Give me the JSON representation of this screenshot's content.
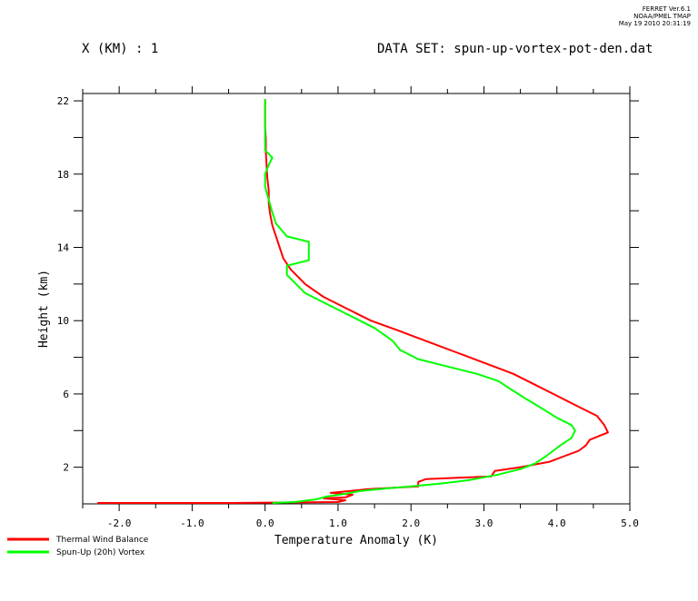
{
  "stamp": {
    "line1": "FERRET  Ver.6.1",
    "line2": "NOAA/PMEL TMAP",
    "line3": "May 19 2010 20:31:19"
  },
  "header": {
    "left": "X (KM) : 1",
    "right": "DATA SET: spun-up-vortex-pot-den.dat"
  },
  "chart_data": {
    "type": "line",
    "xlabel": "Temperature Anomaly (K)",
    "ylabel": "Height (km)",
    "xlim": [
      -2.5,
      5.0
    ],
    "ylim": [
      0,
      22.4
    ],
    "xticks": [
      -2.0,
      -1.0,
      0.0,
      1.0,
      2.0,
      3.0,
      4.0,
      5.0
    ],
    "xtick_labels": [
      "-2.0",
      "-1.0",
      "0.0",
      "1.0",
      "2.0",
      "3.0",
      "4.0",
      "5.0"
    ],
    "yticks": [
      2,
      6,
      10,
      14,
      18,
      22
    ],
    "ytick_labels": [
      "2",
      "6",
      "10",
      "14",
      "18",
      "22"
    ],
    "grid": false,
    "legend": "bottom-left",
    "series": [
      {
        "name": "Thermal Wind Balance",
        "color": "#ff0000",
        "points": [
          [
            -2.3,
            0.05
          ],
          [
            -0.5,
            0.05
          ],
          [
            1.0,
            0.1
          ],
          [
            1.1,
            0.2
          ],
          [
            0.8,
            0.3
          ],
          [
            1.1,
            0.35
          ],
          [
            1.2,
            0.5
          ],
          [
            0.9,
            0.6
          ],
          [
            1.4,
            0.8
          ],
          [
            2.1,
            0.95
          ],
          [
            2.1,
            1.2
          ],
          [
            2.2,
            1.35
          ],
          [
            3.1,
            1.5
          ],
          [
            3.15,
            1.8
          ],
          [
            3.5,
            2.0
          ],
          [
            3.9,
            2.3
          ],
          [
            4.1,
            2.6
          ],
          [
            4.3,
            2.9
          ],
          [
            4.4,
            3.2
          ],
          [
            4.45,
            3.5
          ],
          [
            4.7,
            3.9
          ],
          [
            4.65,
            4.3
          ],
          [
            4.55,
            4.8
          ],
          [
            4.3,
            5.3
          ],
          [
            4.0,
            5.9
          ],
          [
            3.7,
            6.5
          ],
          [
            3.4,
            7.1
          ],
          [
            3.0,
            7.7
          ],
          [
            2.6,
            8.3
          ],
          [
            2.2,
            8.9
          ],
          [
            1.8,
            9.5
          ],
          [
            1.45,
            10.0
          ],
          [
            1.1,
            10.7
          ],
          [
            0.8,
            11.3
          ],
          [
            0.55,
            12.0
          ],
          [
            0.35,
            12.8
          ],
          [
            0.25,
            13.4
          ],
          [
            0.2,
            14.0
          ],
          [
            0.15,
            14.6
          ],
          [
            0.1,
            15.2
          ],
          [
            0.07,
            15.8
          ],
          [
            0.05,
            16.4
          ],
          [
            0.05,
            17.1
          ],
          [
            0.03,
            17.8
          ],
          [
            0.02,
            18.5
          ],
          [
            0.01,
            19.2
          ],
          [
            0.01,
            19.9
          ],
          [
            0.0,
            20.6
          ],
          [
            0.0,
            21.3
          ],
          [
            0.0,
            22.1
          ]
        ]
      },
      {
        "name": "Spun-Up (20h) Vortex",
        "color": "#00ff00",
        "points": [
          [
            0.1,
            0.05
          ],
          [
            0.4,
            0.1
          ],
          [
            0.7,
            0.25
          ],
          [
            0.85,
            0.4
          ],
          [
            1.1,
            0.55
          ],
          [
            1.3,
            0.7
          ],
          [
            1.7,
            0.85
          ],
          [
            2.0,
            0.95
          ],
          [
            2.4,
            1.1
          ],
          [
            2.8,
            1.3
          ],
          [
            3.2,
            1.6
          ],
          [
            3.5,
            1.9
          ],
          [
            3.7,
            2.2
          ],
          [
            3.85,
            2.6
          ],
          [
            3.95,
            2.9
          ],
          [
            4.05,
            3.2
          ],
          [
            4.2,
            3.6
          ],
          [
            4.25,
            4.0
          ],
          [
            4.2,
            4.3
          ],
          [
            4.0,
            4.7
          ],
          [
            3.8,
            5.2
          ],
          [
            3.55,
            5.8
          ],
          [
            3.35,
            6.3
          ],
          [
            3.2,
            6.7
          ],
          [
            2.9,
            7.1
          ],
          [
            2.5,
            7.5
          ],
          [
            2.1,
            7.9
          ],
          [
            1.85,
            8.4
          ],
          [
            1.75,
            8.9
          ],
          [
            1.5,
            9.6
          ],
          [
            1.35,
            9.9
          ],
          [
            1.1,
            10.4
          ],
          [
            0.8,
            11.0
          ],
          [
            0.55,
            11.5
          ],
          [
            0.45,
            11.9
          ],
          [
            0.3,
            12.5
          ],
          [
            0.3,
            13.0
          ],
          [
            0.6,
            13.3
          ],
          [
            0.6,
            14.3
          ],
          [
            0.3,
            14.6
          ],
          [
            0.15,
            15.3
          ],
          [
            0.1,
            15.9
          ],
          [
            0.05,
            16.6
          ],
          [
            0.0,
            17.3
          ],
          [
            0.0,
            18.0
          ],
          [
            0.05,
            18.5
          ],
          [
            0.1,
            18.9
          ],
          [
            0.0,
            19.3
          ],
          [
            0.0,
            19.8
          ],
          [
            0.0,
            20.5
          ],
          [
            0.0,
            21.3
          ],
          [
            0.0,
            22.1
          ]
        ]
      }
    ]
  }
}
